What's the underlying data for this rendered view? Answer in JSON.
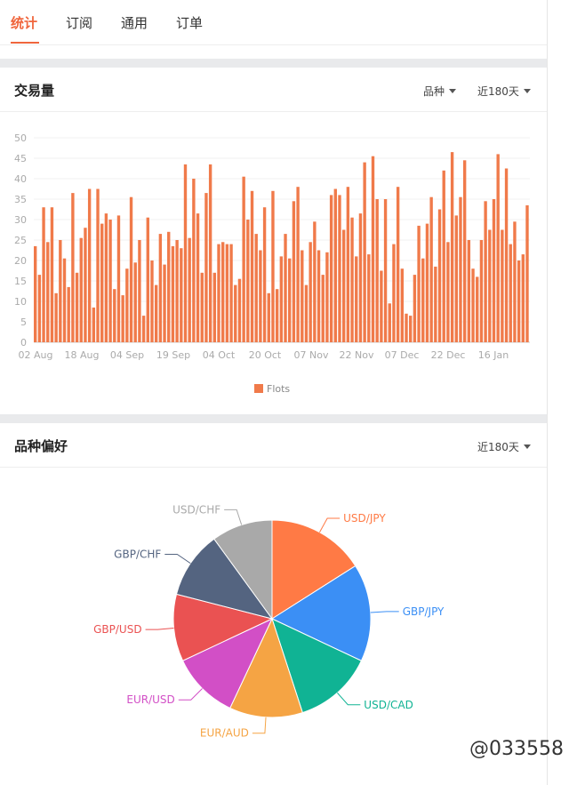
{
  "tabs": [
    {
      "label": "统计",
      "active": true
    },
    {
      "label": "订阅",
      "active": false
    },
    {
      "label": "通用",
      "active": false
    },
    {
      "label": "订单",
      "active": false
    }
  ],
  "volume_card": {
    "title": "交易量",
    "filter_symbol": "品种",
    "filter_range": "近180天"
  },
  "preference_card": {
    "title": "品种偏好",
    "filter_range": "近180天"
  },
  "watermark": "@033558",
  "colors": {
    "accent": "#f0663d",
    "bar": "#f07a4a"
  },
  "chart_data": [
    {
      "type": "bar",
      "ylim": [
        0,
        50
      ],
      "yticks": [
        0,
        5,
        10,
        15,
        20,
        25,
        30,
        35,
        40,
        45,
        50
      ],
      "xticks": [
        "02 Aug",
        "18 Aug",
        "04 Sep",
        "19 Sep",
        "04 Oct",
        "20 Oct",
        "07 Nov",
        "22 Nov",
        "07 Dec",
        "22 Dec",
        "16 Jan"
      ],
      "legend": [
        "Flots"
      ],
      "series": [
        {
          "name": "Flots",
          "values": [
            23.5,
            16.5,
            33,
            24.5,
            33,
            12,
            25,
            20.5,
            13.5,
            36.5,
            17,
            25.5,
            28,
            37.5,
            8.5,
            37.5,
            29,
            31.5,
            30,
            13,
            31,
            11.5,
            18,
            35.5,
            19.5,
            25,
            6.5,
            30.5,
            20,
            14,
            26.5,
            19,
            27,
            23.5,
            25,
            23,
            43.5,
            25.5,
            40,
            31.5,
            17,
            36.5,
            43.5,
            17,
            24,
            24.5,
            24,
            24,
            14,
            15.5,
            40.5,
            30,
            37,
            26.5,
            22.5,
            33,
            12,
            37,
            13,
            21,
            26.5,
            20.5,
            34.5,
            38,
            22.5,
            14,
            24.5,
            29.5,
            22.5,
            16.5,
            22,
            36,
            37.5,
            36,
            27.5,
            38,
            30.5,
            21,
            31.5,
            44,
            21.5,
            45.5,
            35,
            17.5,
            35,
            9.5,
            24,
            38,
            18,
            7,
            6.5,
            16.5,
            28.5,
            20.5,
            29,
            35.5,
            18.5,
            32.5,
            42,
            24.5,
            46.5,
            31,
            35.5,
            44.5,
            25,
            18,
            16,
            25,
            34.5,
            27.5,
            35,
            46,
            27.5,
            42.5,
            24,
            29.5,
            20,
            21.5,
            33.5
          ]
        }
      ]
    },
    {
      "type": "pie",
      "labels": [
        "USD/JPY",
        "GBP/JPY",
        "USD/CAD",
        "EUR/AUD",
        "EUR/USD",
        "GBP/USD",
        "GBP/CHF",
        "USD/CHF"
      ],
      "values": [
        16,
        16,
        13,
        12,
        11,
        11,
        11,
        10
      ],
      "colors": [
        "#ff7a45",
        "#3b8ff5",
        "#10b394",
        "#f5a444",
        "#d24fc6",
        "#ea5252",
        "#546480",
        "#a9a9a9"
      ]
    }
  ]
}
